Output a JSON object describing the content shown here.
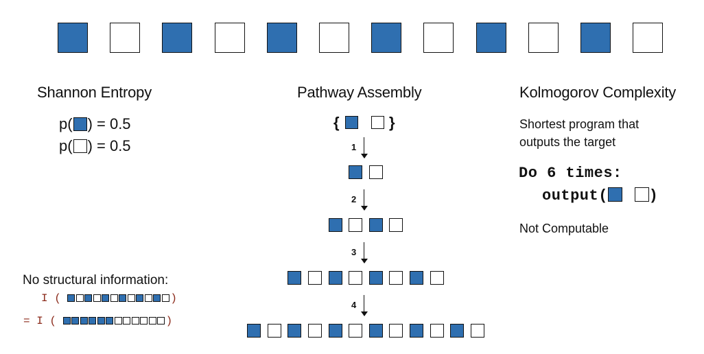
{
  "colors": {
    "filled": "#2f6fb0",
    "empty": "#ffffff",
    "outline": "#111111",
    "code": "#8b2a1a"
  },
  "target_sequence": "ABABABABABAB",
  "shannon": {
    "title": "Shannon Entropy",
    "p_prefix": "p(",
    "p_suffix": ") = 0.5",
    "structural_label": "No structural information:",
    "i_open": "I (",
    "i_close": ")",
    "eq_prefix": "= I (",
    "seq_alternating": "ABABABABABAB",
    "seq_grouped": "AAAAAABBBBBB"
  },
  "pathway": {
    "title": "Pathway Assembly",
    "brace_open": "{",
    "brace_close": "}",
    "steps": [
      "1",
      "2",
      "3",
      "4"
    ],
    "rows": [
      "AB",
      "ABAB",
      "ABABABAB",
      "ABABABABABAB"
    ]
  },
  "kolmogorov": {
    "title": "Kolmogorov Complexity",
    "desc_line1": "Shortest program that",
    "desc_line2": "outputs the target",
    "code_line1": "Do 6 times:",
    "code_line2_prefix": "output(",
    "code_line2_suffix": ")",
    "note": "Not Computable"
  }
}
